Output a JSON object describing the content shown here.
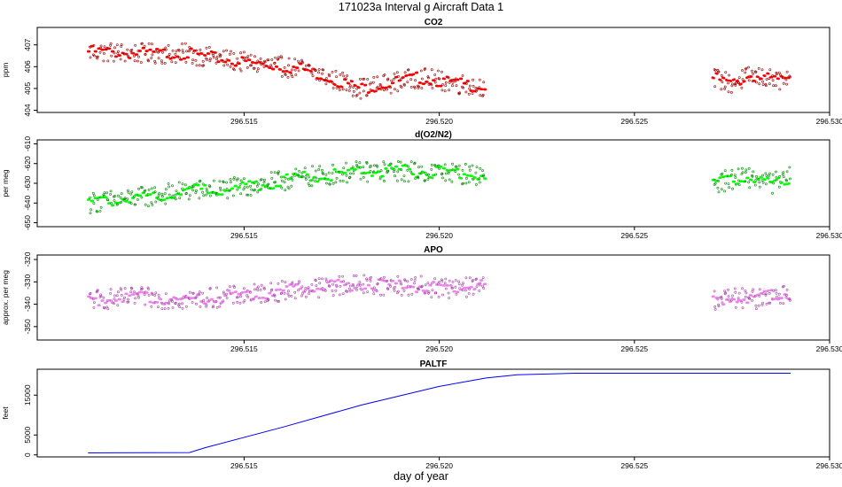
{
  "title": "171023a   Interval g Aircraft Data 1",
  "xlabel": "day of year",
  "chart_data": [
    {
      "type": "scatter",
      "title": "CO2",
      "ylabel": "ppm",
      "xlim": [
        296.5097,
        296.53
      ],
      "ylim": [
        403.9,
        407.8
      ],
      "yticks": [
        404,
        405,
        406,
        407
      ],
      "xticks": [
        "296.515",
        "296.520",
        "296.525",
        "296.530"
      ],
      "color": "#ff0000",
      "segments": [
        {
          "x": [
            296.511,
            296.5124,
            296.5135,
            296.515,
            296.5165,
            296.518,
            296.5195,
            296.5205,
            296.5212
          ],
          "y": [
            406.7,
            406.6,
            406.6,
            406.2,
            405.9,
            405.0,
            405.5,
            405.2,
            405.1
          ]
        },
        {
          "x": [
            296.527,
            296.5275,
            296.528,
            296.5285,
            296.529
          ],
          "y": [
            405.5,
            405.2,
            405.6,
            405.4,
            405.3
          ]
        }
      ]
    },
    {
      "type": "scatter",
      "title": "d(O2/N2)",
      "ylabel": "per meg",
      "xlim": [
        296.5097,
        296.53
      ],
      "ylim": [
        -652,
        -608
      ],
      "yticks": [
        -650,
        -640,
        -630,
        -620,
        -610
      ],
      "xticks": [
        "296.515",
        "296.520",
        "296.525",
        "296.530"
      ],
      "color": "#00ff00",
      "segments": [
        {
          "x": [
            296.511,
            296.5124,
            296.5135,
            296.515,
            296.5165,
            296.518,
            296.5195,
            296.5205,
            296.5212
          ],
          "y": [
            -640,
            -637,
            -634,
            -632,
            -627,
            -624,
            -624,
            -625,
            -626
          ]
        },
        {
          "x": [
            296.527,
            296.5275,
            296.528,
            296.5285,
            296.529
          ],
          "y": [
            -630,
            -628,
            -627,
            -630,
            -627
          ]
        }
      ]
    },
    {
      "type": "scatter",
      "title": "APO",
      "ylabel": "approx. per meg",
      "xlim": [
        296.5097,
        296.53
      ],
      "ylim": [
        -356,
        -318
      ],
      "yticks": [
        -350,
        -340,
        -330,
        -320
      ],
      "xticks": [
        "296.515",
        "296.520",
        "296.525",
        "296.530"
      ],
      "color": "#ee82ee",
      "segments": [
        {
          "x": [
            296.511,
            296.5124,
            296.5135,
            296.515,
            296.5165,
            296.518,
            296.5195,
            296.5205,
            296.5212
          ],
          "y": [
            -338,
            -337,
            -338,
            -336,
            -333,
            -331,
            -332,
            -333,
            -331
          ]
        },
        {
          "x": [
            296.527,
            296.5275,
            296.528,
            296.5285,
            296.529
          ],
          "y": [
            -338,
            -337,
            -338,
            -336,
            -335
          ]
        }
      ]
    },
    {
      "type": "line",
      "title": "PALTF",
      "ylabel": "feet",
      "xlim": [
        296.5097,
        296.53
      ],
      "ylim": [
        -500,
        21500
      ],
      "yticks": [
        0,
        5000,
        15000
      ],
      "xticks": [
        "296.515",
        "296.520",
        "296.525",
        "296.530"
      ],
      "color": "#0000ff",
      "x": [
        296.511,
        296.5136,
        296.514,
        296.516,
        296.518,
        296.52,
        296.5212,
        296.522,
        296.5235,
        296.529
      ],
      "y": [
        500,
        600,
        1800,
        7000,
        12500,
        17200,
        19300,
        20100,
        20500,
        20500
      ]
    }
  ]
}
